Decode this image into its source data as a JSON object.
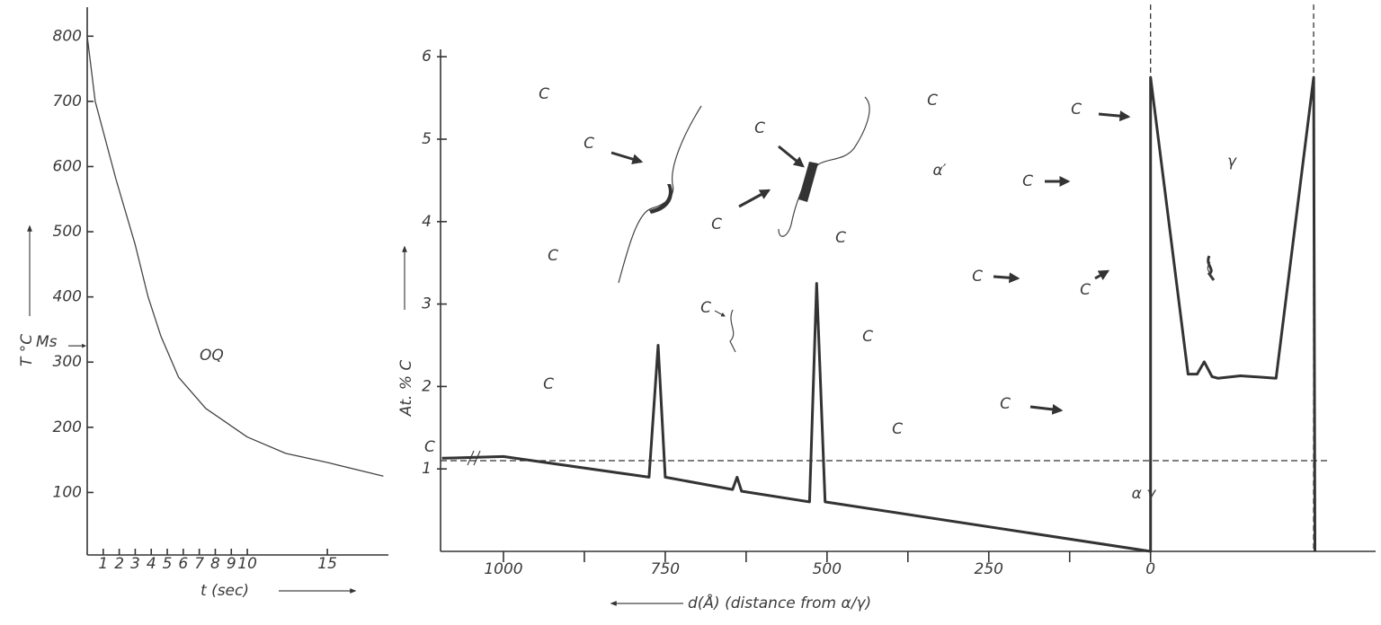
{
  "chart_data": [
    {
      "type": "line",
      "y_label": "T °C",
      "x_label": "t (sec)",
      "x": [
        0,
        0.5,
        1.8,
        3,
        3.8,
        4.6,
        5.7,
        7.4,
        10,
        12.4,
        15,
        18.5
      ],
      "values": [
        800,
        700,
        580,
        480,
        400,
        340,
        277,
        229,
        185,
        160,
        146,
        125
      ],
      "color": "#444444",
      "curve_label": "OQ",
      "ms": {
        "label": "Ms",
        "value": 325
      },
      "xlim": [
        0,
        18.7
      ],
      "ylim": [
        0,
        850
      ],
      "xticks": [
        1,
        2,
        3,
        4,
        5,
        6,
        7,
        8,
        9,
        10,
        15
      ],
      "yticks": [
        100,
        200,
        300,
        400,
        500,
        600,
        700,
        800
      ]
    },
    {
      "type": "line",
      "y_label": "At. % C",
      "x_label": "d(Å) (distance from α/γ)",
      "x": [
        1095,
        1000,
        775,
        761,
        750,
        646,
        639,
        632,
        527,
        516,
        503,
        0,
        0,
        -25,
        -58,
        -72,
        -83,
        -95,
        -104,
        -139,
        -194,
        -252,
        -254
      ],
      "values": [
        1.13,
        1.15,
        0.9,
        2.5,
        0.9,
        0.75,
        0.9,
        0.73,
        0.6,
        3.25,
        0.6,
        0,
        5.75,
        4.2,
        2.15,
        2.15,
        2.3,
        2.12,
        2.1,
        2.13,
        2.1,
        5.75,
        0
      ],
      "color": "#333333",
      "reference": {
        "label": "C",
        "value": 1.1
      },
      "interface_lines": [
        0,
        -252
      ],
      "phase_labels": [
        "α′",
        "γ"
      ],
      "interface_label": "α γ",
      "annotations": [
        "C",
        "C",
        "C",
        "C",
        "C",
        "C",
        "C",
        "C",
        "C",
        "C",
        "C",
        "C",
        "C",
        "C",
        "C",
        "C"
      ],
      "xlim": [
        1100,
        -345
      ],
      "ylim": [
        0,
        6.1
      ],
      "xticks": [
        1000,
        750,
        500,
        250,
        0
      ],
      "minor_xticks": [
        875,
        625,
        375,
        125
      ],
      "yticks": [
        1,
        2,
        3,
        4,
        5,
        6
      ]
    }
  ]
}
